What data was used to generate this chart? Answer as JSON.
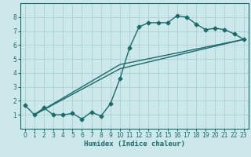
{
  "xlabel": "Humidex (Indice chaleur)",
  "bg_color": "#cce8ea",
  "grid_color": "#afd4d6",
  "line_color": "#1a6b6b",
  "markersize": 2.5,
  "linewidth": 1.0,
  "xlim": [
    -0.5,
    23.5
  ],
  "ylim": [
    0.0,
    9.0
  ],
  "xticks": [
    0,
    1,
    2,
    3,
    4,
    5,
    6,
    7,
    8,
    9,
    10,
    11,
    12,
    13,
    14,
    15,
    16,
    17,
    18,
    19,
    20,
    21,
    22,
    23
  ],
  "yticks": [
    1,
    2,
    3,
    4,
    5,
    6,
    7,
    8
  ],
  "line1_x": [
    0,
    1,
    2,
    3,
    4,
    5,
    6,
    7,
    8,
    9,
    10,
    11,
    12,
    13,
    14,
    15,
    16,
    17,
    18,
    19,
    20,
    21,
    22,
    23
  ],
  "line1_y": [
    1.7,
    1.0,
    1.5,
    1.0,
    1.0,
    1.1,
    0.7,
    1.2,
    0.9,
    1.8,
    3.6,
    5.8,
    7.3,
    7.6,
    7.6,
    7.6,
    8.1,
    8.0,
    7.5,
    7.1,
    7.2,
    7.1,
    6.8,
    6.4
  ],
  "line2_x": [
    1,
    10,
    23
  ],
  "line2_y": [
    1.0,
    4.3,
    6.4
  ],
  "line3_x": [
    1,
    10,
    23
  ],
  "line3_y": [
    1.0,
    4.6,
    6.4
  ]
}
